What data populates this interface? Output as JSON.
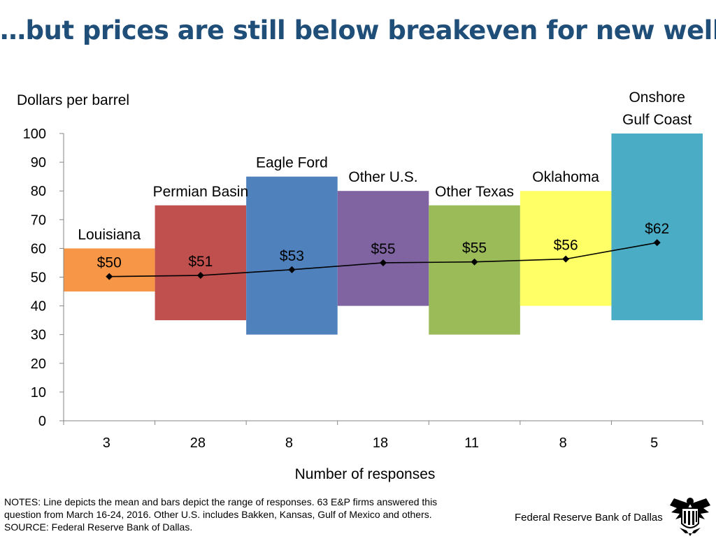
{
  "header": {
    "title": "…but prices are still below breakeven for new wells"
  },
  "chart_data": {
    "type": "bar",
    "subtype": "floating range bars with mean line",
    "ylabel": "Dollars per barrel",
    "xlabel": "Number of responses",
    "ylim": [
      0,
      100
    ],
    "yticks": [
      0,
      10,
      20,
      30,
      40,
      50,
      60,
      70,
      80,
      90,
      100
    ],
    "grid": false,
    "legend": "none",
    "categories": [
      "3",
      "28",
      "8",
      "18",
      "11",
      "8",
      "5"
    ],
    "series": [
      {
        "type": "range",
        "region_labels": [
          [
            "Louisiana"
          ],
          [
            "Permian Basin"
          ],
          [
            "Eagle Ford"
          ],
          [
            "Other U.S."
          ],
          [
            "Other Texas"
          ],
          [
            "Oklahoma"
          ],
          [
            "Onshore",
            "Gulf Coast"
          ]
        ],
        "low": [
          45,
          35,
          30,
          40,
          30,
          40,
          35
        ],
        "high": [
          60,
          75,
          85,
          80,
          75,
          80,
          100
        ],
        "colors": [
          "#f79646",
          "#c0504d",
          "#4f81bd",
          "#8064a2",
          "#9bbb59",
          "#ffff66",
          "#4bacc6"
        ]
      },
      {
        "type": "line",
        "values": [
          50.2,
          50.6,
          52.6,
          55.0,
          55.3,
          56.3,
          62.0
        ],
        "data_labels": [
          "$50",
          "$51",
          "$53",
          "$55",
          "$55",
          "$56",
          "$62"
        ],
        "color": "#000000"
      }
    ]
  },
  "footer": {
    "notes": [
      "NOTES: Line depicts the mean and bars depict the range of responses. 63 E&P firms answered this",
      "question from March 16-24, 2016. Other U.S. includes Bakken, Kansas, Gulf of Mexico and others.",
      "SOURCE: Federal Reserve Bank of Dallas."
    ],
    "org": "Federal Reserve Bank of Dallas",
    "seal_icon": "eagle-seal-icon"
  }
}
